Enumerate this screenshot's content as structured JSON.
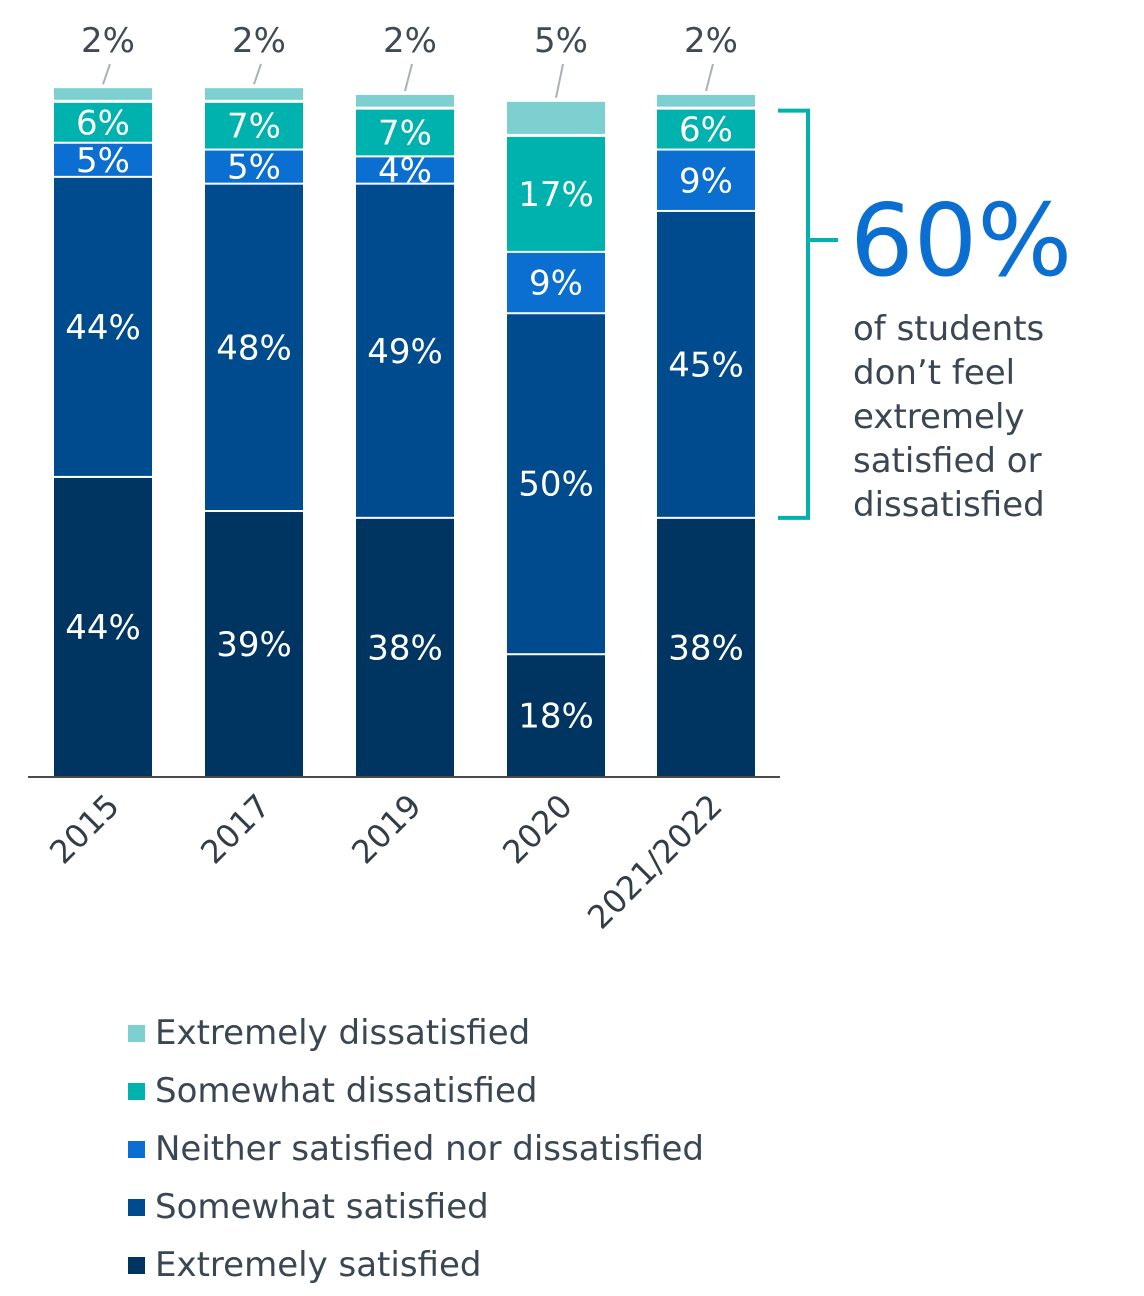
{
  "chart_data": {
    "type": "bar",
    "stacked": true,
    "categories": [
      "2015",
      "2017",
      "2019",
      "2020",
      "2021/2022"
    ],
    "series": [
      {
        "name": "Extremely satisfied",
        "color": "#003461",
        "values": [
          44,
          39,
          38,
          18,
          38
        ]
      },
      {
        "name": "Somewhat satisfied",
        "color": "#004b8d",
        "values": [
          44,
          48,
          49,
          50,
          45
        ]
      },
      {
        "name": "Neither satisfied nor dissatisfied",
        "color": "#0a6fd1",
        "values": [
          5,
          5,
          4,
          9,
          9
        ]
      },
      {
        "name": "Somewhat dissatisfied",
        "color": "#00b2ad",
        "values": [
          6,
          7,
          7,
          17,
          6
        ]
      },
      {
        "name": "Extremely dissatisfied",
        "color": "#7ecfcf",
        "values": [
          2,
          2,
          2,
          5,
          2
        ]
      }
    ],
    "ylim": [
      0,
      100
    ],
    "legend_position": "bottom"
  },
  "callout": {
    "value": "60%",
    "lines": [
      "of students",
      "don’t feel",
      "extremely",
      "satisfied or",
      "dissatisfied"
    ],
    "bracket_color": "#00b2ad"
  }
}
